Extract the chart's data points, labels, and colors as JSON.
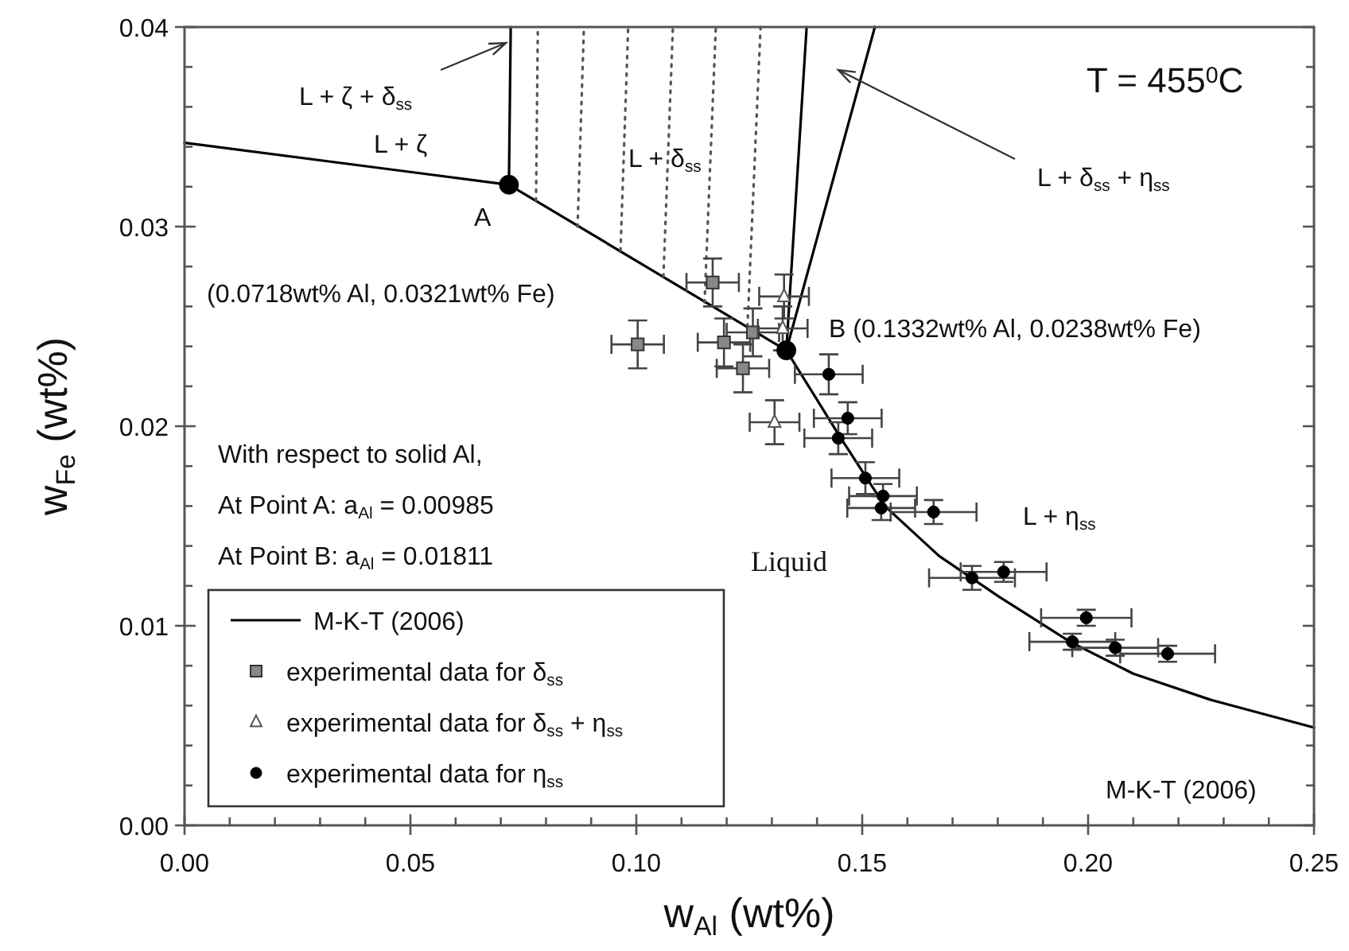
{
  "chart_data": {
    "type": "line",
    "xlabel": "w$_{Al}$ (wt%)",
    "ylabel": "w$_{Fe}$ (wt%)",
    "xlim": [
      0,
      0.25
    ],
    "ylim": [
      0,
      0.04
    ],
    "xticks": [
      {
        "value": 0,
        "label": "0.00"
      },
      {
        "value": 0.01,
        "label": null
      },
      {
        "value": 0.02,
        "label": null
      },
      {
        "value": 0.03,
        "label": null
      },
      {
        "value": 0.04,
        "label": null
      },
      {
        "value": 0.05,
        "label": "0.05"
      },
      {
        "value": 0.06,
        "label": null
      },
      {
        "value": 0.07,
        "label": null
      },
      {
        "value": 0.08,
        "label": null
      },
      {
        "value": 0.09,
        "label": null
      },
      {
        "value": 0.1,
        "label": "0.10"
      },
      {
        "value": 0.11,
        "label": null
      },
      {
        "value": 0.12,
        "label": null
      },
      {
        "value": 0.13,
        "label": null
      },
      {
        "value": 0.14,
        "label": null
      },
      {
        "value": 0.15,
        "label": "0.15"
      },
      {
        "value": 0.16,
        "label": null
      },
      {
        "value": 0.17,
        "label": null
      },
      {
        "value": 0.18,
        "label": null
      },
      {
        "value": 0.19,
        "label": null
      },
      {
        "value": 0.2,
        "label": "0.20"
      },
      {
        "value": 0.21,
        "label": null
      },
      {
        "value": 0.22,
        "label": null
      },
      {
        "value": 0.23,
        "label": null
      },
      {
        "value": 0.24,
        "label": null
      },
      {
        "value": 0.25,
        "label": "0.25"
      }
    ],
    "yticks": [
      {
        "value": 0,
        "label": "0.00"
      },
      {
        "value": 0.002,
        "label": null
      },
      {
        "value": 0.004,
        "label": null
      },
      {
        "value": 0.006,
        "label": null
      },
      {
        "value": 0.008,
        "label": null
      },
      {
        "value": 0.01,
        "label": "0.01"
      },
      {
        "value": 0.012,
        "label": null
      },
      {
        "value": 0.014,
        "label": null
      },
      {
        "value": 0.016,
        "label": null
      },
      {
        "value": 0.018,
        "label": null
      },
      {
        "value": 0.02,
        "label": "0.02"
      },
      {
        "value": 0.022,
        "label": null
      },
      {
        "value": 0.024,
        "label": null
      },
      {
        "value": 0.026,
        "label": null
      },
      {
        "value": 0.028,
        "label": null
      },
      {
        "value": 0.03,
        "label": "0.03"
      },
      {
        "value": 0.032,
        "label": null
      },
      {
        "value": 0.034,
        "label": null
      },
      {
        "value": 0.036,
        "label": null
      },
      {
        "value": 0.038,
        "label": null
      },
      {
        "value": 0.04,
        "label": "0.04"
      }
    ],
    "grid": false,
    "legend": "bottom left",
    "series": [
      {
        "name": "M-K-T (2006)",
        "color": "#000000",
        "marker": "none",
        "line_style": "solid",
        "x": [
          0,
          0.0718,
          0.1332,
          0.145,
          0.155,
          0.167,
          0.18,
          0.196,
          0.21,
          0.227,
          0.25
        ],
        "values": [
          0.0342,
          0.0321,
          0.0238,
          0.0195,
          0.016,
          0.0135,
          0.0115,
          0.0092,
          0.0076,
          0.0063,
          0.0049
        ]
      },
      {
        "color": "#000000",
        "marker": "none",
        "line_style": "solid",
        "x": [
          0.0718,
          0.0722
        ],
        "values": [
          0.0321,
          0.04
        ]
      },
      {
        "color": "#000000",
        "marker": "none",
        "line_style": "solid",
        "x": [
          0.1332,
          0.1377
        ],
        "values": [
          0.0238,
          0.04
        ]
      },
      {
        "color": "#000000",
        "marker": "none",
        "line_style": "solid",
        "x": [
          0.1332,
          0.1528
        ],
        "values": [
          0.0238,
          0.04
        ]
      },
      {
        "color": "#555555",
        "marker": "none",
        "line_style": "dotted",
        "x": [
          0.0778,
          0.0782
        ],
        "values": [
          0.0313,
          0.04
        ]
      },
      {
        "color": "#555555",
        "marker": "none",
        "line_style": "dotted",
        "x": [
          0.087,
          0.0884
        ],
        "values": [
          0.03,
          0.04
        ]
      },
      {
        "color": "#555555",
        "marker": "none",
        "line_style": "dotted",
        "x": [
          0.0965,
          0.0982
        ],
        "values": [
          0.0288,
          0.04
        ]
      },
      {
        "color": "#555555",
        "marker": "none",
        "line_style": "dotted",
        "x": [
          0.106,
          0.1081
        ],
        "values": [
          0.0275,
          0.04
        ]
      },
      {
        "color": "#555555",
        "marker": "none",
        "line_style": "dotted",
        "x": [
          0.1151,
          0.1176
        ],
        "values": [
          0.0262,
          0.04
        ]
      },
      {
        "color": "#555555",
        "marker": "none",
        "line_style": "dotted",
        "x": [
          0.1246,
          0.1275
        ],
        "values": [
          0.025,
          0.04
        ]
      },
      {
        "name": "experimental data for δ$_{ss}$",
        "type": "scatter",
        "color": "#888888",
        "marker": "square",
        "x": [
          0.1169,
          0.1003,
          0.1194,
          0.1236,
          0.1258
        ],
        "values": [
          0.0272,
          0.0241,
          0.0242,
          0.0229,
          0.0247
        ],
        "errors": [
          0.0012,
          0.0012,
          0.0012,
          0.0012,
          0.0012
        ],
        "xerrors": [
          0.0058,
          0.0058,
          0.0058,
          0.0058,
          0.0058
        ]
      },
      {
        "name": "experimental data for δ$_{ss}$ + η$_{ss}$",
        "type": "scatter",
        "color": "#ffffff",
        "marker": "triangle",
        "x": [
          0.1306,
          0.1327,
          0.1324
        ],
        "values": [
          0.0202,
          0.0265,
          0.0249
        ],
        "errors": [
          0.0011,
          0.0011,
          0.0011
        ],
        "xerrors": [
          0.0055,
          0.0055,
          0.0055
        ]
      },
      {
        "name": "experimental data for η$_{ss}$",
        "type": "scatter",
        "color": "#000000",
        "marker": "circle",
        "x": [
          0.1426,
          0.1468,
          0.1447,
          0.1507,
          0.1546,
          0.1542,
          0.1658,
          0.1743,
          0.1813,
          0.1996,
          0.1965,
          0.206,
          0.2176
        ],
        "values": [
          0.0226,
          0.0204,
          0.0194,
          0.0174,
          0.0165,
          0.0159,
          0.0157,
          0.0124,
          0.0127,
          0.0104,
          0.0092,
          0.0089,
          0.0086
        ],
        "errors": [
          0.001,
          0.0008,
          0.0008,
          0.0008,
          0.0006,
          0.0006,
          0.0006,
          0.0006,
          0.0005,
          0.0004,
          0.0004,
          0.0004,
          0.0004
        ],
        "xerrors": [
          0.0075,
          0.0075,
          0.0075,
          0.0075,
          0.0075,
          0.0075,
          0.0095,
          0.0095,
          0.0095,
          0.01,
          0.0095,
          0.0095,
          0.0105
        ]
      },
      {
        "type": "scatter",
        "color": "#000000",
        "marker": "circle",
        "x": [
          0.0718,
          0.1332
        ],
        "values": [
          0.0321,
          0.0238
        ]
      }
    ],
    "annotations": [
      "L + ζ + δ$_{ss}$",
      "L + ζ",
      "A",
      "(0.0718wt% Al, 0.0321wt% Fe)",
      "L + δ$_{ss}$",
      "T = 455$^{0}$C",
      "L + δ$_{ss}$ + η$_{ss}$",
      "B (0.1332wt% Al, 0.0238wt% Fe)",
      "With respect to solid Al,",
      "At Point A: a$_{Al}$ = 0.00985",
      "At Point B: a$_{Al}$ = 0.01811",
      "Liquid",
      "L + η$_{ss}$",
      "M-K-T (2006)"
    ]
  }
}
